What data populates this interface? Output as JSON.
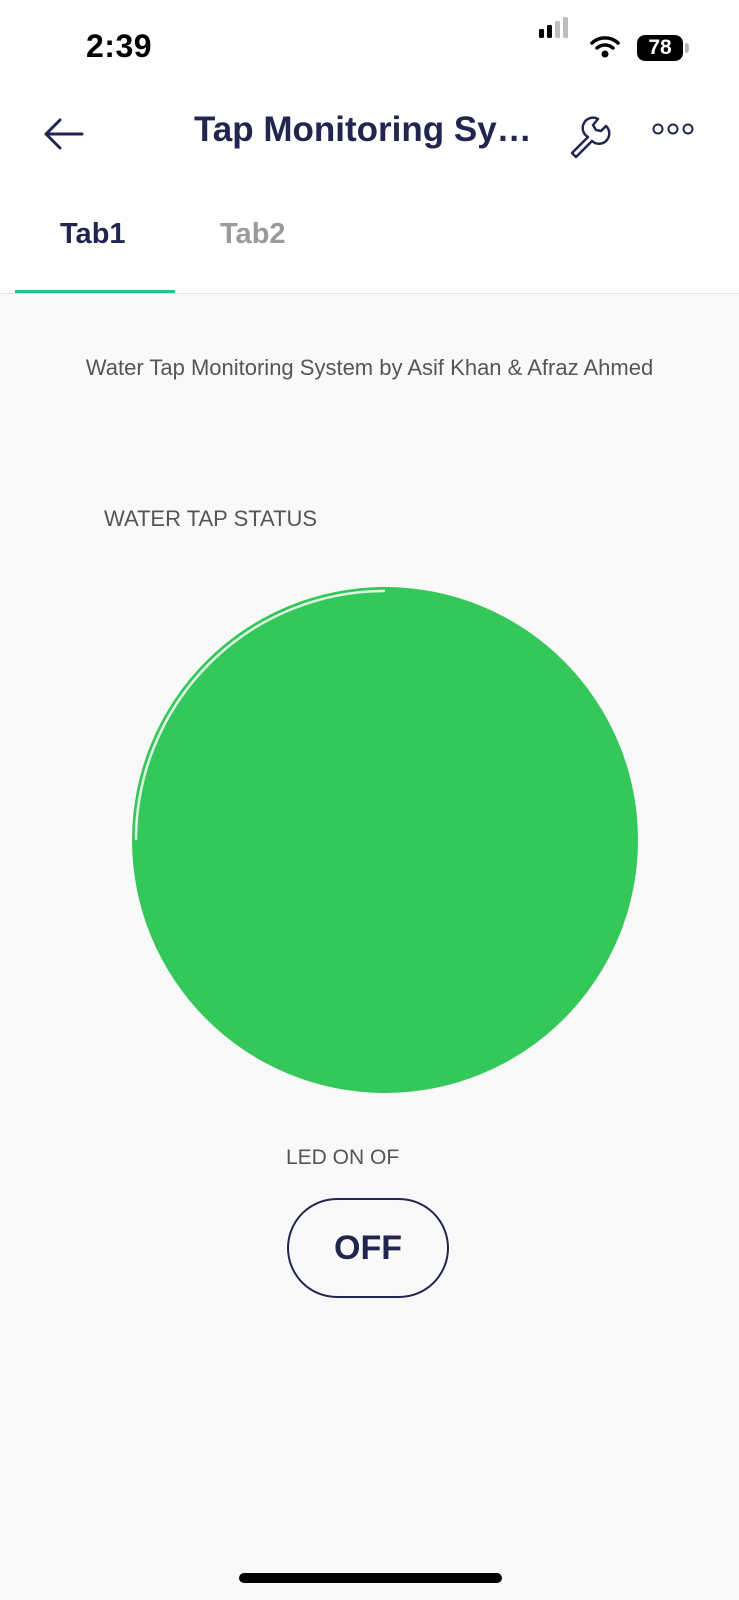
{
  "status_bar": {
    "time": "2:39",
    "battery": "78"
  },
  "header": {
    "title": "Tap Monitoring Syst...",
    "back_icon": "arrow-left-icon",
    "settings_icon": "wrench-icon",
    "more_icon": "more-horizontal-icon"
  },
  "tabs": [
    {
      "label": "Tab1",
      "active": true
    },
    {
      "label": "Tab2",
      "active": false
    }
  ],
  "main": {
    "subtitle": "Water Tap Monitoring System by Asif Khan & Afraz Ahmed",
    "led_widget": {
      "label": "WATER TAP STATUS",
      "color": "#34c759",
      "state": "on"
    },
    "button_widget": {
      "label": "LED ON OF",
      "value": "OFF"
    }
  },
  "colors": {
    "accent": "#23c48e",
    "primary_text": "#22264f",
    "led_green": "#34c759"
  }
}
